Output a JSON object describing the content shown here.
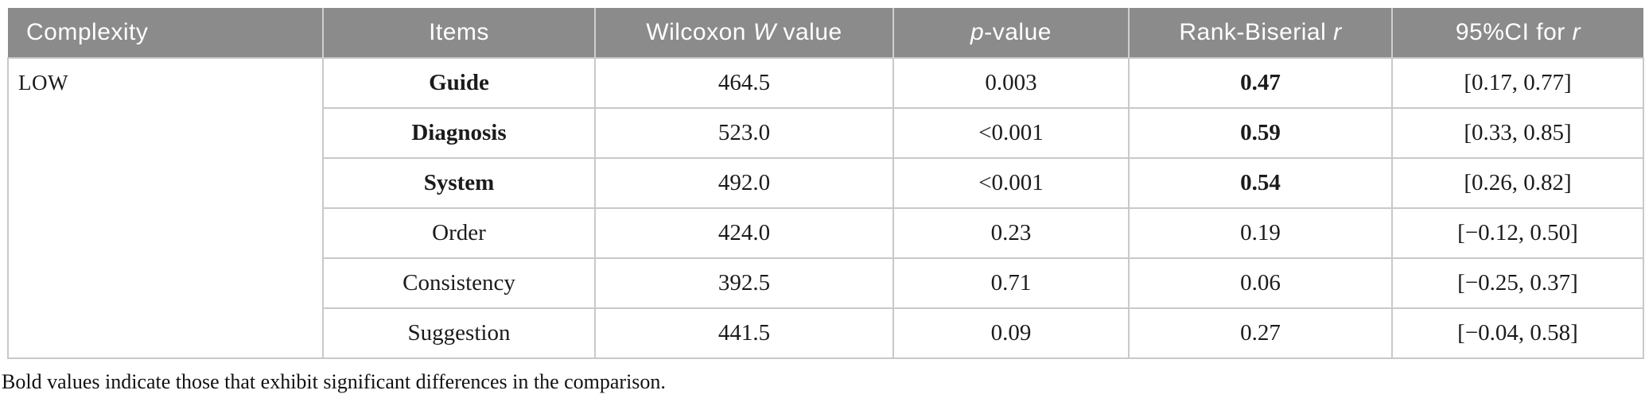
{
  "chart_data": {
    "type": "table",
    "columns": [
      "Complexity",
      "Items",
      "Wilcoxon W value",
      "p-value",
      "Rank-Biserial r",
      "95%CI for r"
    ],
    "rows": [
      [
        "LOW",
        "Guide",
        "464.5",
        "0.003",
        "0.47",
        "[0.17, 0.77]"
      ],
      [
        "",
        "Diagnosis",
        "523.0",
        "<0.001",
        "0.59",
        "[0.33, 0.85]"
      ],
      [
        "",
        "System",
        "492.0",
        "<0.001",
        "0.54",
        "[0.26, 0.82]"
      ],
      [
        "",
        "Order",
        "424.0",
        "0.23",
        "0.19",
        "[−0.12, 0.50]"
      ],
      [
        "",
        "Consistency",
        "392.5",
        "0.71",
        "0.06",
        "[−0.25, 0.37]"
      ],
      [
        "",
        "Suggestion",
        "441.5",
        "0.09",
        "0.27",
        "[−0.04, 0.58]"
      ]
    ]
  },
  "table": {
    "header": {
      "columns": [
        {
          "id": "complexity",
          "segments": [
            [
              "Complexity",
              false
            ]
          ]
        },
        {
          "id": "items",
          "segments": [
            [
              "Items",
              false
            ]
          ]
        },
        {
          "id": "wilcoxon",
          "segments": [
            [
              "Wilcoxon ",
              false
            ],
            [
              "W",
              true
            ],
            [
              " value",
              false
            ]
          ]
        },
        {
          "id": "p_value",
          "segments": [
            [
              "p",
              true
            ],
            [
              "-value",
              false
            ]
          ]
        },
        {
          "id": "rank_biserial",
          "segments": [
            [
              "Rank-Biserial ",
              false
            ],
            [
              "r",
              true
            ]
          ]
        },
        {
          "id": "ci",
          "segments": [
            [
              "95%CI for ",
              false
            ],
            [
              "r",
              true
            ]
          ]
        }
      ]
    },
    "complexity_group": "LOW",
    "rows": [
      {
        "item": "Guide",
        "wilcoxon": "464.5",
        "p": "0.003",
        "r": "0.47",
        "ci": "[0.17, 0.77]",
        "significant": true
      },
      {
        "item": "Diagnosis",
        "wilcoxon": "523.0",
        "p": "<0.001",
        "r": "0.59",
        "ci": "[0.33, 0.85]",
        "significant": true
      },
      {
        "item": "System",
        "wilcoxon": "492.0",
        "p": "<0.001",
        "r": "0.54",
        "ci": "[0.26, 0.82]",
        "significant": true
      },
      {
        "item": "Order",
        "wilcoxon": "424.0",
        "p": "0.23",
        "r": "0.19",
        "ci": "[−0.12, 0.50]",
        "significant": false
      },
      {
        "item": "Consistency",
        "wilcoxon": "392.5",
        "p": "0.71",
        "r": "0.06",
        "ci": "[−0.25, 0.37]",
        "significant": false
      },
      {
        "item": "Suggestion",
        "wilcoxon": "441.5",
        "p": "0.09",
        "r": "0.27",
        "ci": "[−0.04, 0.58]",
        "significant": false
      }
    ],
    "footnote": "Bold values indicate those that exhibit significant differences in the comparison."
  },
  "colors": {
    "header_bg": "#8b8b8b",
    "header_text": "#ffffff",
    "header_divider": "#cfcfcf",
    "body_border": "#c9c9c9",
    "body_text": "#1b1b1b"
  }
}
